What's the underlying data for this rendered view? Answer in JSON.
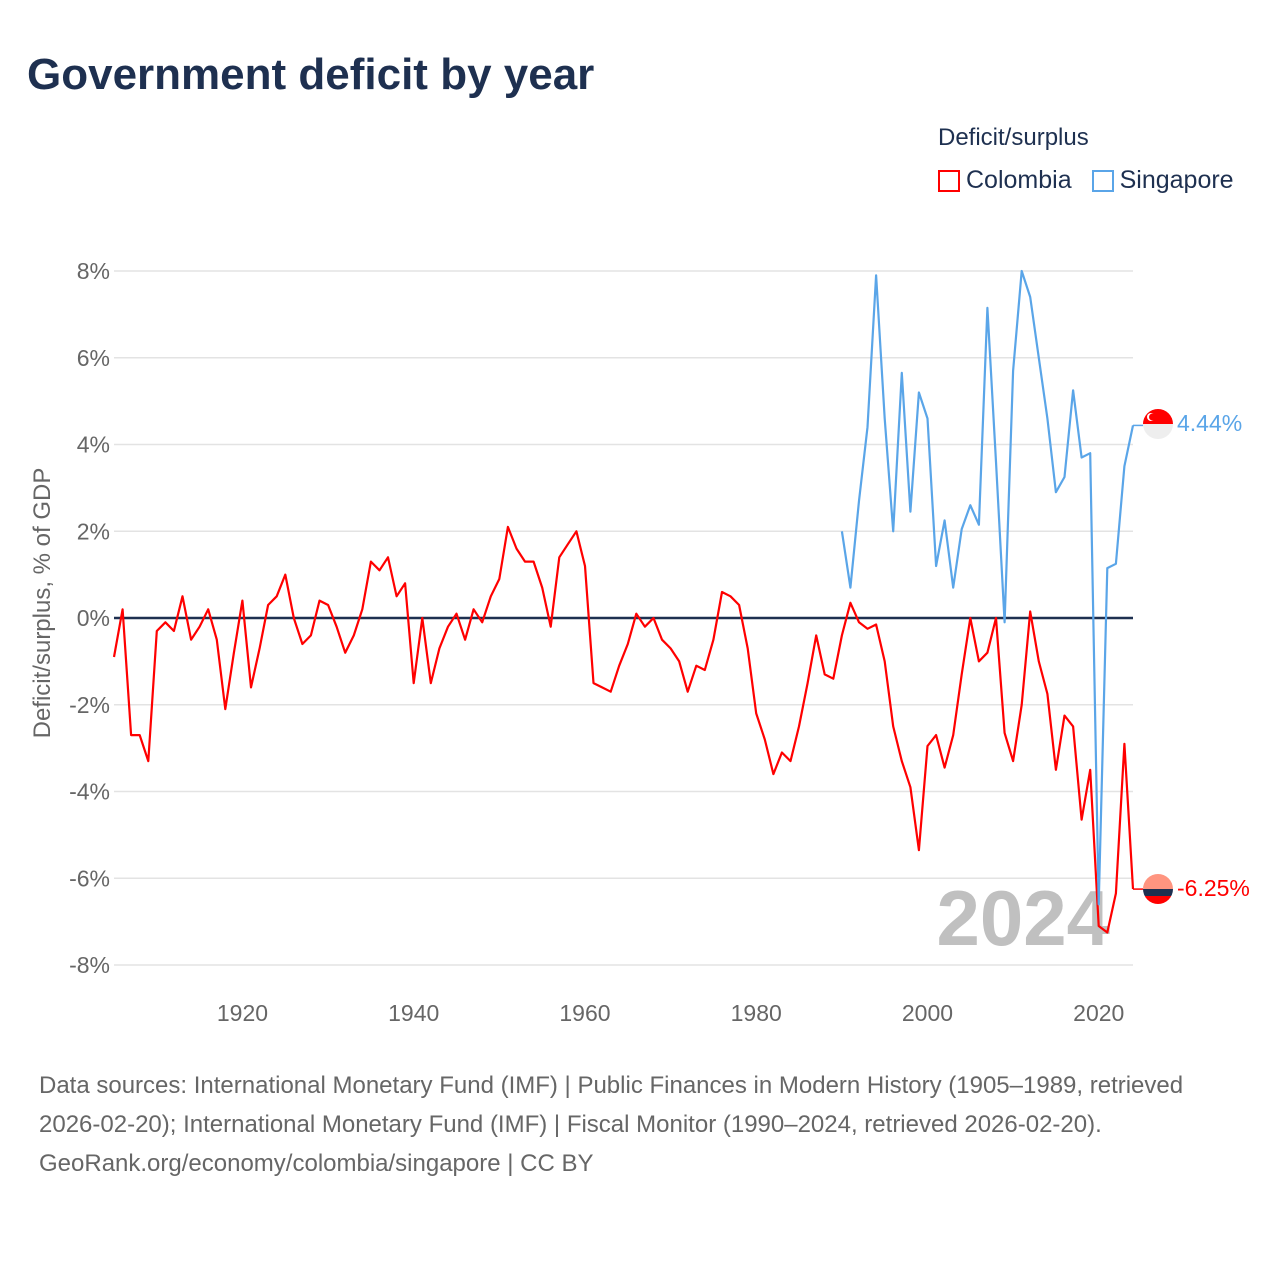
{
  "title": "Government deficit by year",
  "legend": {
    "title": "Deficit/surplus",
    "items": [
      {
        "label": "Colombia",
        "color": "#ff0000"
      },
      {
        "label": "Singapore",
        "color": "#5aa5e8"
      }
    ]
  },
  "year_watermark": "2024",
  "end_labels": {
    "colombia": "-6.25%",
    "singapore": "4.44%"
  },
  "icons": {
    "colombia": "colombia-flag-icon",
    "singapore": "singapore-flag-icon"
  },
  "footer": {
    "sources": "Data sources: International Monetary Fund (IMF) | Public Finances in Modern History (1905–1989, retrieved 2026-02-20); International Monetary Fund (IMF) | Fiscal Monitor (1990–2024, retrieved 2026-02-20).",
    "credit": "GeoRank.org/economy/colombia/singapore | CC BY"
  },
  "chart_data": {
    "type": "line",
    "title": "Government deficit by year",
    "xlabel": "",
    "ylabel": "Deficit/surplus, % of GDP",
    "xlim": [
      1905,
      2024
    ],
    "ylim": [
      -8,
      8
    ],
    "xticks": [
      1920,
      1940,
      1960,
      1980,
      2000,
      2020
    ],
    "yticks": [
      8,
      6,
      4,
      2,
      0,
      -2,
      -4,
      -6,
      -8
    ],
    "ytick_labels": [
      "8%",
      "6%",
      "4%",
      "2%",
      "0%",
      "-2%",
      "-4%",
      "-6%",
      "-8%"
    ],
    "grid": true,
    "legend_position": "top-right",
    "series": [
      {
        "name": "Colombia",
        "color": "#ff0000",
        "start_year": 1905,
        "values": [
          -0.9,
          0.2,
          -2.7,
          -2.7,
          -3.3,
          -0.3,
          -0.1,
          -0.3,
          0.5,
          -0.5,
          -0.2,
          0.2,
          -0.5,
          -2.1,
          -0.8,
          0.4,
          -1.6,
          -0.7,
          0.3,
          0.5,
          1.0,
          0.0,
          -0.6,
          -0.4,
          0.4,
          0.3,
          -0.2,
          -0.8,
          -0.4,
          0.2,
          1.3,
          1.1,
          1.4,
          0.5,
          0.8,
          -1.5,
          0.0,
          -1.5,
          -0.7,
          -0.2,
          0.1,
          -0.5,
          0.2,
          -0.1,
          0.5,
          0.9,
          2.1,
          1.6,
          1.3,
          1.3,
          0.7,
          -0.2,
          1.4,
          1.7,
          2.0,
          1.2,
          -1.5,
          -1.6,
          -1.7,
          -1.1,
          -0.6,
          0.1,
          -0.2,
          0.0,
          -0.5,
          -0.7,
          -1.0,
          -1.7,
          -1.1,
          -1.2,
          -0.5,
          0.6,
          0.5,
          0.3,
          -0.7,
          -2.2,
          -2.8,
          -3.6,
          -3.1,
          -3.3,
          -2.5,
          -1.5,
          -0.4,
          -1.3,
          -1.4,
          -0.4,
          0.35,
          -0.1,
          -0.25,
          -0.15,
          -1.0,
          -2.5,
          -3.3,
          -3.9,
          -5.35,
          -2.95,
          -2.7,
          -3.45,
          -2.7,
          -1.3,
          0.0,
          -1.0,
          -0.8,
          0.0,
          -2.65,
          -3.3,
          -2.0,
          0.15,
          -1.0,
          -1.75,
          -3.5,
          -2.25,
          -2.5,
          -4.65,
          -3.5,
          -7.1,
          -7.25,
          -6.35,
          -2.9,
          -6.25
        ]
      },
      {
        "name": "Singapore",
        "color": "#5aa5e8",
        "start_year": 1990,
        "values": [
          2.0,
          0.7,
          2.7,
          4.4,
          7.9,
          4.6,
          2.0,
          5.65,
          2.45,
          5.2,
          4.6,
          1.2,
          2.25,
          0.7,
          2.05,
          2.6,
          2.15,
          7.15,
          3.6,
          -0.1,
          5.7,
          8.0,
          7.4,
          6.0,
          4.6,
          2.9,
          3.25,
          5.25,
          3.7,
          3.8,
          -6.6,
          1.15,
          1.25,
          3.5,
          4.44
        ]
      }
    ]
  }
}
